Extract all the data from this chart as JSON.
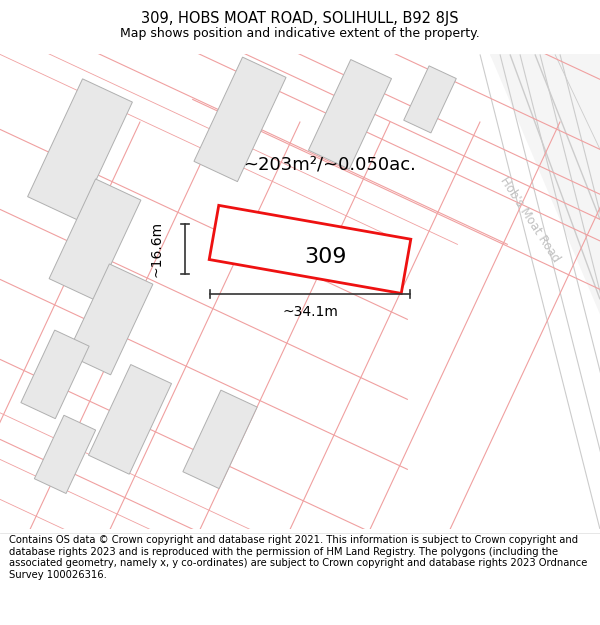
{
  "title": "309, HOBS MOAT ROAD, SOLIHULL, B92 8JS",
  "subtitle": "Map shows position and indicative extent of the property.",
  "footnote": "Contains OS data © Crown copyright and database right 2021. This information is subject to Crown copyright and database rights 2023 and is reproduced with the permission of HM Land Registry. The polygons (including the associated geometry, namely x, y co-ordinates) are subject to Crown copyright and database rights 2023 Ordnance Survey 100026316.",
  "area_label": "~203m²/~0.050ac.",
  "property_number": "309",
  "dim_width": "~34.1m",
  "dim_height": "~16.6m",
  "road_label": "Hob's Moat Road",
  "bg_color": "#ffffff",
  "building_fill": "#e8e8e8",
  "building_edge": "#b0b0b0",
  "prop_line_color": "#f0a0a0",
  "highlight_color": "#ee1111",
  "dim_line_color": "#333333",
  "road_gray": "#cccccc",
  "road_label_color": "#c0c0c0",
  "title_fontsize": 10.5,
  "subtitle_fontsize": 9,
  "footnote_fontsize": 7.2
}
